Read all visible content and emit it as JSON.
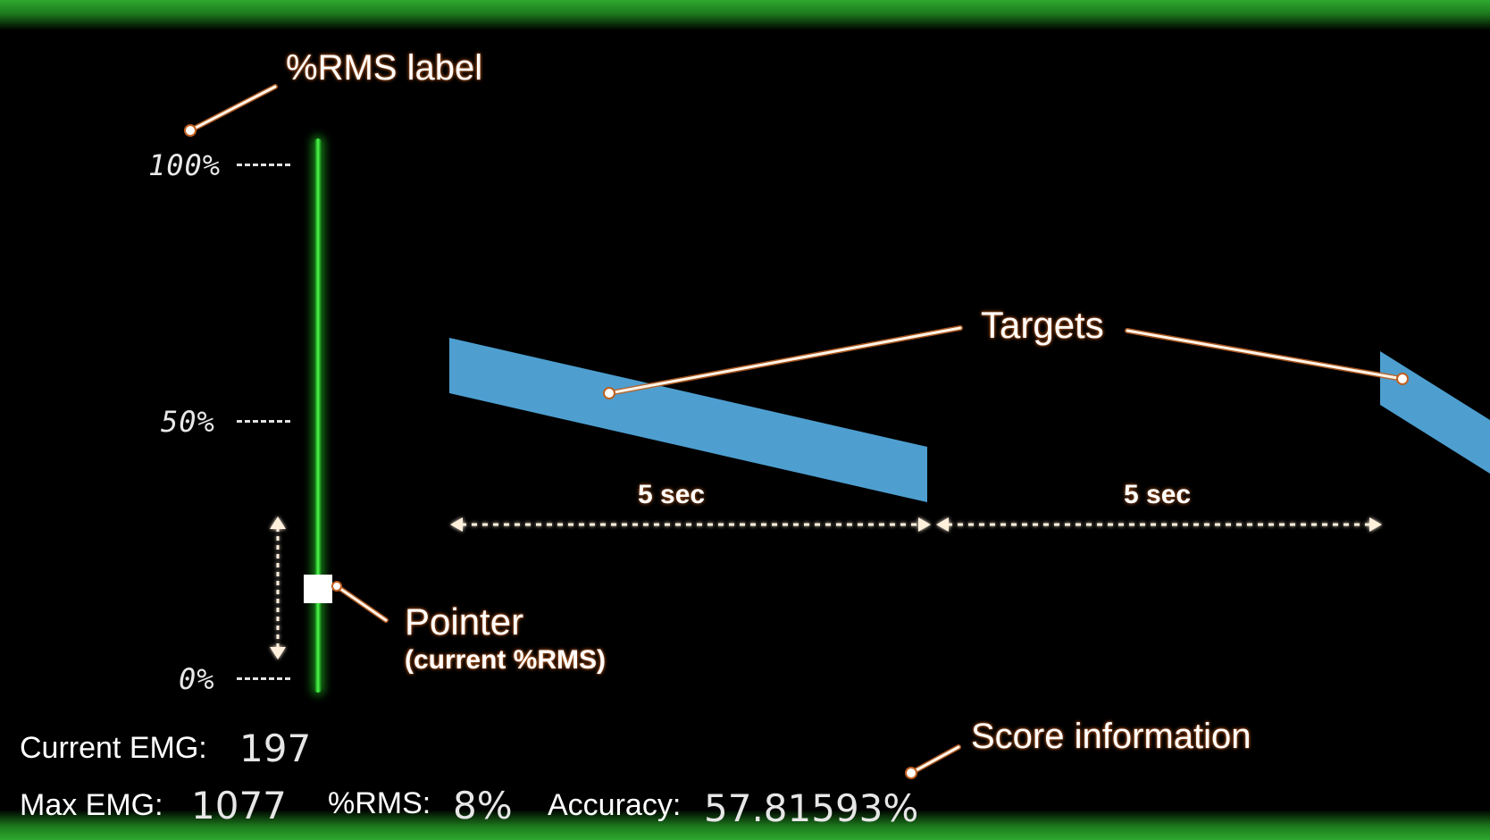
{
  "colors": {
    "background": "#000000",
    "frame_green": "#2fa82f",
    "bar_green": "#4cff4c",
    "target_blue": "#4e9fd0",
    "pointer": "#ffffff",
    "annotation_line": "#fff4e8",
    "annotation_glow": "#c06020"
  },
  "scale": {
    "top_label": "100%",
    "mid_label": "50%",
    "bottom_label": "0%"
  },
  "pointer_level_rms_percent": 8,
  "annotations": {
    "rms_label": "%RMS label",
    "targets": "Targets",
    "pointer_title": "Pointer",
    "pointer_sub": "(current %RMS)",
    "score_info": "Score information",
    "duration_left": "5 sec",
    "duration_right": "5 sec"
  },
  "score": {
    "current_emg_label": "Current EMG:",
    "current_emg_value": "197",
    "max_emg_label": "Max EMG:",
    "max_emg_value": "1077",
    "rms_label": "%RMS:",
    "rms_value": "8%",
    "accuracy_label": "Accuracy:",
    "accuracy_value": "57.81593%"
  },
  "icons": {
    "vertical_arrow": "double-headed-vertical-arrow-icon",
    "horizontal_arrow": "double-headed-horizontal-arrow-icon"
  }
}
